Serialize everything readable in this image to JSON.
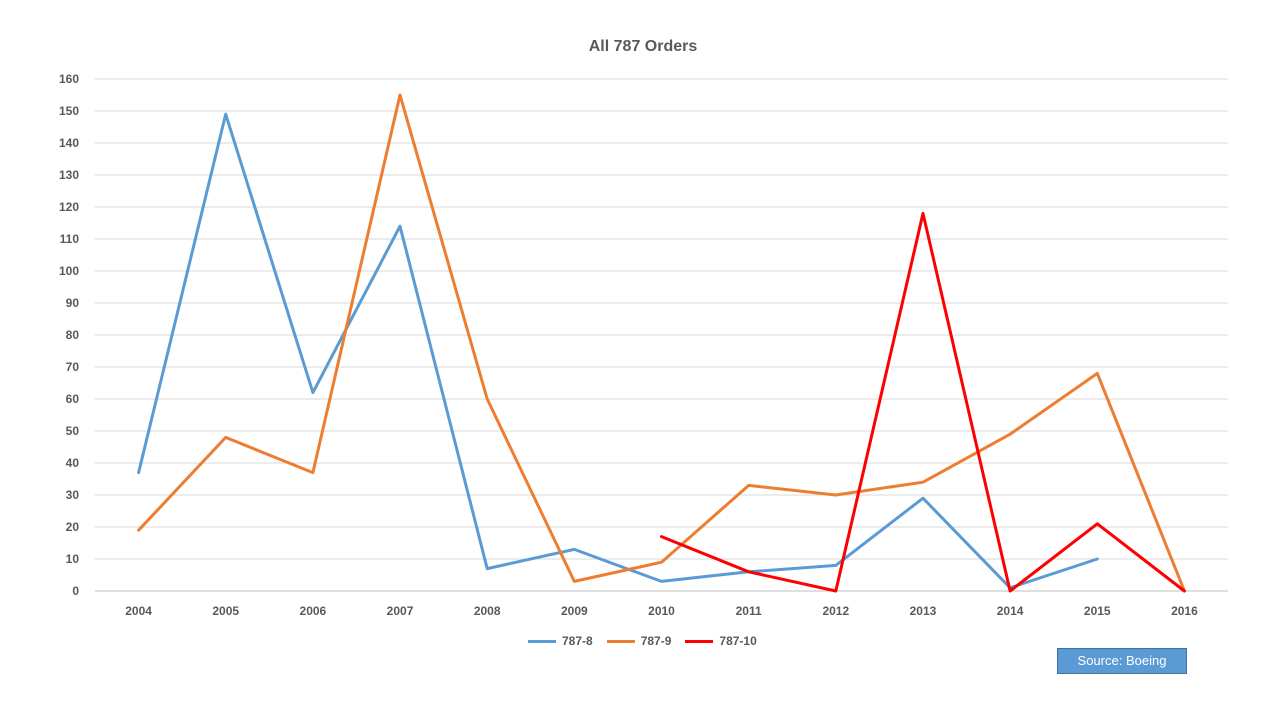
{
  "chart_data": {
    "type": "line",
    "title": "All 787 Orders",
    "xlabel": "",
    "ylabel": "",
    "ylim": [
      0,
      160
    ],
    "yticks": [
      0,
      10,
      20,
      30,
      40,
      50,
      60,
      70,
      80,
      90,
      100,
      110,
      120,
      130,
      140,
      150,
      160
    ],
    "categories": [
      "2004",
      "2005",
      "2006",
      "2007",
      "2008",
      "2009",
      "2010",
      "2011",
      "2012",
      "2013",
      "2014",
      "2015",
      "2016"
    ],
    "grid": true,
    "legend_position": "bottom",
    "series": [
      {
        "name": "787-8",
        "color": "#5b9bd5",
        "values": [
          37,
          149,
          62,
          114,
          7,
          13,
          3,
          6,
          8,
          29,
          1,
          10,
          null
        ]
      },
      {
        "name": "787-9",
        "color": "#ed7d31",
        "values": [
          19,
          48,
          37,
          155,
          60,
          3,
          9,
          33,
          30,
          34,
          49,
          68,
          0
        ]
      },
      {
        "name": "787-10",
        "color": "#ff0000",
        "values": [
          null,
          null,
          null,
          null,
          null,
          null,
          17,
          6,
          0,
          118,
          0,
          21,
          0
        ]
      }
    ]
  },
  "source_label": "Source: Boeing"
}
